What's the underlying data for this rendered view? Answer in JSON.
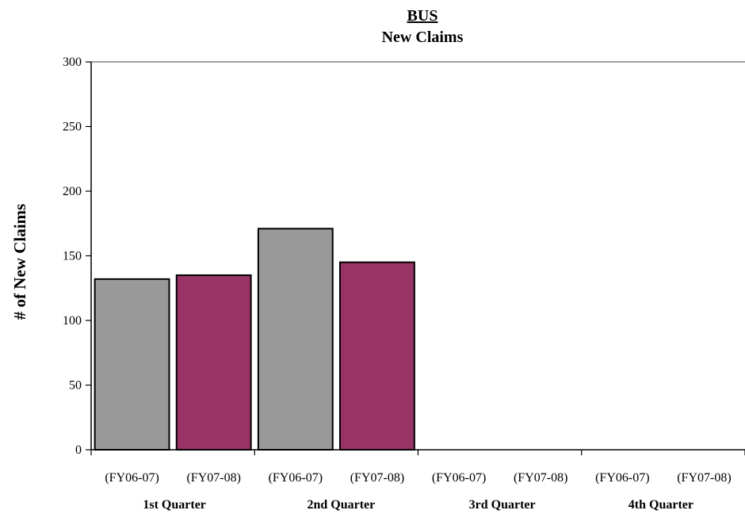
{
  "chart_data": {
    "type": "bar",
    "title": "BUS",
    "subtitle": "New Claims",
    "ylabel": "# of New Claims",
    "xlabel": "",
    "ylim": [
      0,
      300
    ],
    "yticks": [
      0,
      50,
      100,
      150,
      200,
      250,
      300
    ],
    "grid": false,
    "legend": "none",
    "categories": [
      "(FY06-07)",
      "(FY07-08)",
      "(FY06-07)",
      "(FY07-08)",
      "(FY06-07)",
      "(FY07-08)",
      "(FY06-07)",
      "(FY07-08)"
    ],
    "groups": [
      "1st Quarter",
      "2nd Quarter",
      "3rd Quarter",
      "4th Quarter"
    ],
    "values": [
      132,
      135,
      171,
      145,
      null,
      null,
      null,
      null
    ],
    "colors": {
      "FY06-07": "#999999",
      "FY07-08": "#993366",
      "axis": "#808080",
      "outline": "#000000"
    }
  }
}
